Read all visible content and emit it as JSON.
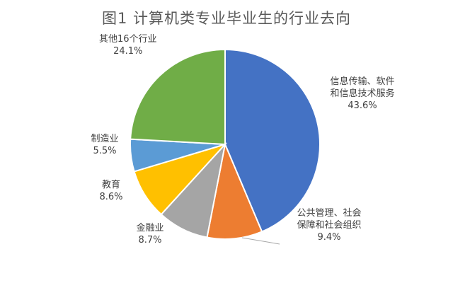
{
  "chart_data": {
    "type": "pie",
    "title": "图1  计算机类专业毕业生的行业去向",
    "slices": [
      {
        "name": "信息传输、软件\n和信息技术服务",
        "value": 43.6,
        "label_pct": "43.6%",
        "color": "#4472C4"
      },
      {
        "name": "公共管理、社会\n保障和社会组织",
        "value": 9.4,
        "label_pct": "9.4%",
        "color": "#ED7D31"
      },
      {
        "name": "金融业",
        "value": 8.7,
        "label_pct": "8.7%",
        "color": "#A5A5A5"
      },
      {
        "name": "教育",
        "value": 8.6,
        "label_pct": "8.6%",
        "color": "#FFC000"
      },
      {
        "name": "制造业",
        "value": 5.5,
        "label_pct": "5.5%",
        "color": "#5B9BD5"
      },
      {
        "name": "其他16个行业",
        "value": 24.1,
        "label_pct": "24.1%",
        "color": "#70AD47"
      }
    ]
  }
}
